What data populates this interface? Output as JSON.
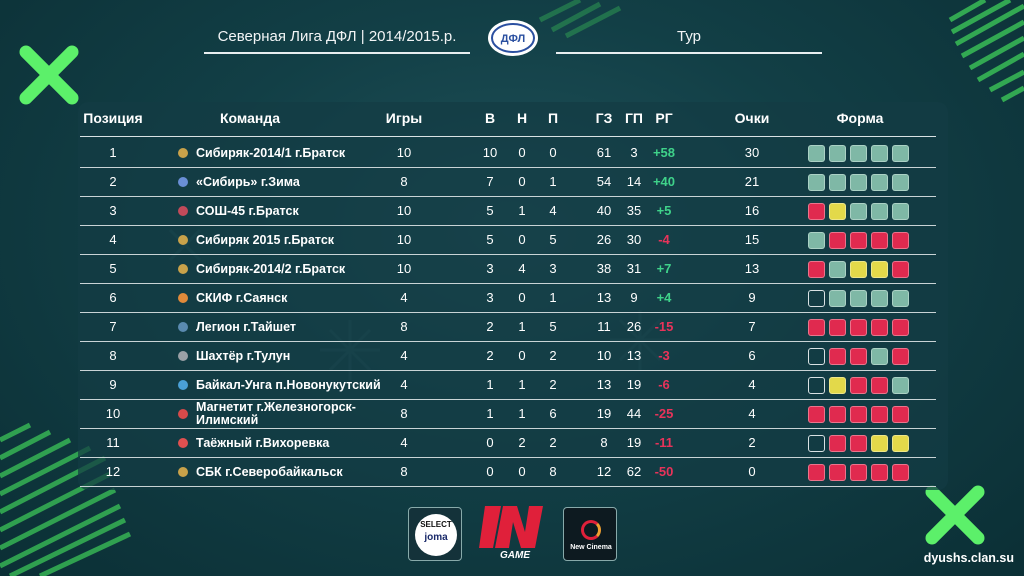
{
  "header": {
    "league": "Северная Лига ДФЛ | 2014/2015.р.",
    "round": "Тур",
    "logo_text": "ДФЛ"
  },
  "columns": {
    "pos": "Позиция",
    "team": "Команда",
    "games": "Игры",
    "w": "В",
    "d": "Н",
    "l": "П",
    "gf": "ГЗ",
    "ga": "ГП",
    "gd": "РГ",
    "pts": "Очки",
    "form": "Форма"
  },
  "colors": {
    "win": "#7fb8a6",
    "draw": "#e3d94a",
    "loss": "#e02a4f",
    "empty": "transparent",
    "gd_pos": "#3fd28a",
    "gd_neg": "#e8335a",
    "accent_green": "#5cf06a"
  },
  "rows": [
    {
      "pos": "1",
      "team": "Сибиряк-2014/1 г.Братск",
      "games": "10",
      "w": "10",
      "d": "0",
      "l": "0",
      "gf": "61",
      "ga": "3",
      "gd": "+58",
      "pts": "30",
      "form": [
        "W",
        "W",
        "W",
        "W",
        "W"
      ],
      "logo_color": "#c9a24a"
    },
    {
      "pos": "2",
      "team": "«Сибирь» г.Зима",
      "games": "8",
      "w": "7",
      "d": "0",
      "l": "1",
      "gf": "54",
      "ga": "14",
      "gd": "+40",
      "pts": "21",
      "form": [
        "W",
        "W",
        "W",
        "W",
        "W"
      ],
      "logo_color": "#6a8fd6"
    },
    {
      "pos": "3",
      "team": "СОШ-45 г.Братск",
      "games": "10",
      "w": "5",
      "d": "1",
      "l": "4",
      "gf": "40",
      "ga": "35",
      "gd": "+5",
      "pts": "16",
      "form": [
        "L",
        "D",
        "W",
        "W",
        "W"
      ],
      "logo_color": "#c24a5a"
    },
    {
      "pos": "4",
      "team": "Сибиряк 2015 г.Братск",
      "games": "10",
      "w": "5",
      "d": "0",
      "l": "5",
      "gf": "26",
      "ga": "30",
      "gd": "-4",
      "pts": "15",
      "form": [
        "W",
        "L",
        "L",
        "L",
        "L"
      ],
      "logo_color": "#c9a24a"
    },
    {
      "pos": "5",
      "team": "Сибиряк-2014/2 г.Братск",
      "games": "10",
      "w": "3",
      "d": "4",
      "l": "3",
      "gf": "38",
      "ga": "31",
      "gd": "+7",
      "pts": "13",
      "form": [
        "L",
        "W",
        "D",
        "D",
        "L"
      ],
      "logo_color": "#c9a24a"
    },
    {
      "pos": "6",
      "team": "СКИФ г.Саянск",
      "games": "4",
      "w": "3",
      "d": "0",
      "l": "1",
      "gf": "13",
      "ga": "9",
      "gd": "+4",
      "pts": "9",
      "form": [
        "E",
        "W",
        "W",
        "W",
        "W"
      ],
      "logo_color": "#e08a3a"
    },
    {
      "pos": "7",
      "team": "Легион г.Тайшет",
      "games": "8",
      "w": "2",
      "d": "1",
      "l": "5",
      "gf": "11",
      "ga": "26",
      "gd": "-15",
      "pts": "7",
      "form": [
        "L",
        "L",
        "L",
        "L",
        "L"
      ],
      "logo_color": "#5a8ab0"
    },
    {
      "pos": "8",
      "team": "Шахтёр г.Тулун",
      "games": "4",
      "w": "2",
      "d": "0",
      "l": "2",
      "gf": "10",
      "ga": "13",
      "gd": "-3",
      "pts": "6",
      "form": [
        "E",
        "L",
        "L",
        "W",
        "L"
      ],
      "logo_color": "#9aa0a6"
    },
    {
      "pos": "9",
      "team": "Байкал-Унга п.Новонукутский",
      "games": "4",
      "w": "1",
      "d": "1",
      "l": "2",
      "gf": "13",
      "ga": "19",
      "gd": "-6",
      "pts": "4",
      "form": [
        "E",
        "D",
        "L",
        "L",
        "W"
      ],
      "logo_color": "#4aa0d6"
    },
    {
      "pos": "10",
      "team": "Магнетит г.Железногорск-Илимский",
      "games": "8",
      "w": "1",
      "d": "1",
      "l": "6",
      "gf": "19",
      "ga": "44",
      "gd": "-25",
      "pts": "4",
      "form": [
        "L",
        "L",
        "L",
        "L",
        "L"
      ],
      "logo_color": "#d64a4a"
    },
    {
      "pos": "11",
      "team": "Таёжный г.Вихоревка",
      "games": "4",
      "w": "0",
      "d": "2",
      "l": "2",
      "gf": "8",
      "ga": "19",
      "gd": "-11",
      "pts": "2",
      "form": [
        "E",
        "L",
        "L",
        "D",
        "D"
      ],
      "logo_color": "#e05050"
    },
    {
      "pos": "12",
      "team": "СБК г.Северобайкальск",
      "games": "8",
      "w": "0",
      "d": "0",
      "l": "8",
      "gf": "12",
      "ga": "62",
      "gd": "-50",
      "pts": "0",
      "form": [
        "L",
        "L",
        "L",
        "L",
        "L"
      ],
      "logo_color": "#c9a24a"
    }
  ],
  "sponsors": {
    "select": "SELECT",
    "joma": "joma",
    "ingame_in": "IN",
    "ingame_game": "GAME",
    "newcinema": "New Cinema"
  },
  "site": "dyushs.clan.su"
}
